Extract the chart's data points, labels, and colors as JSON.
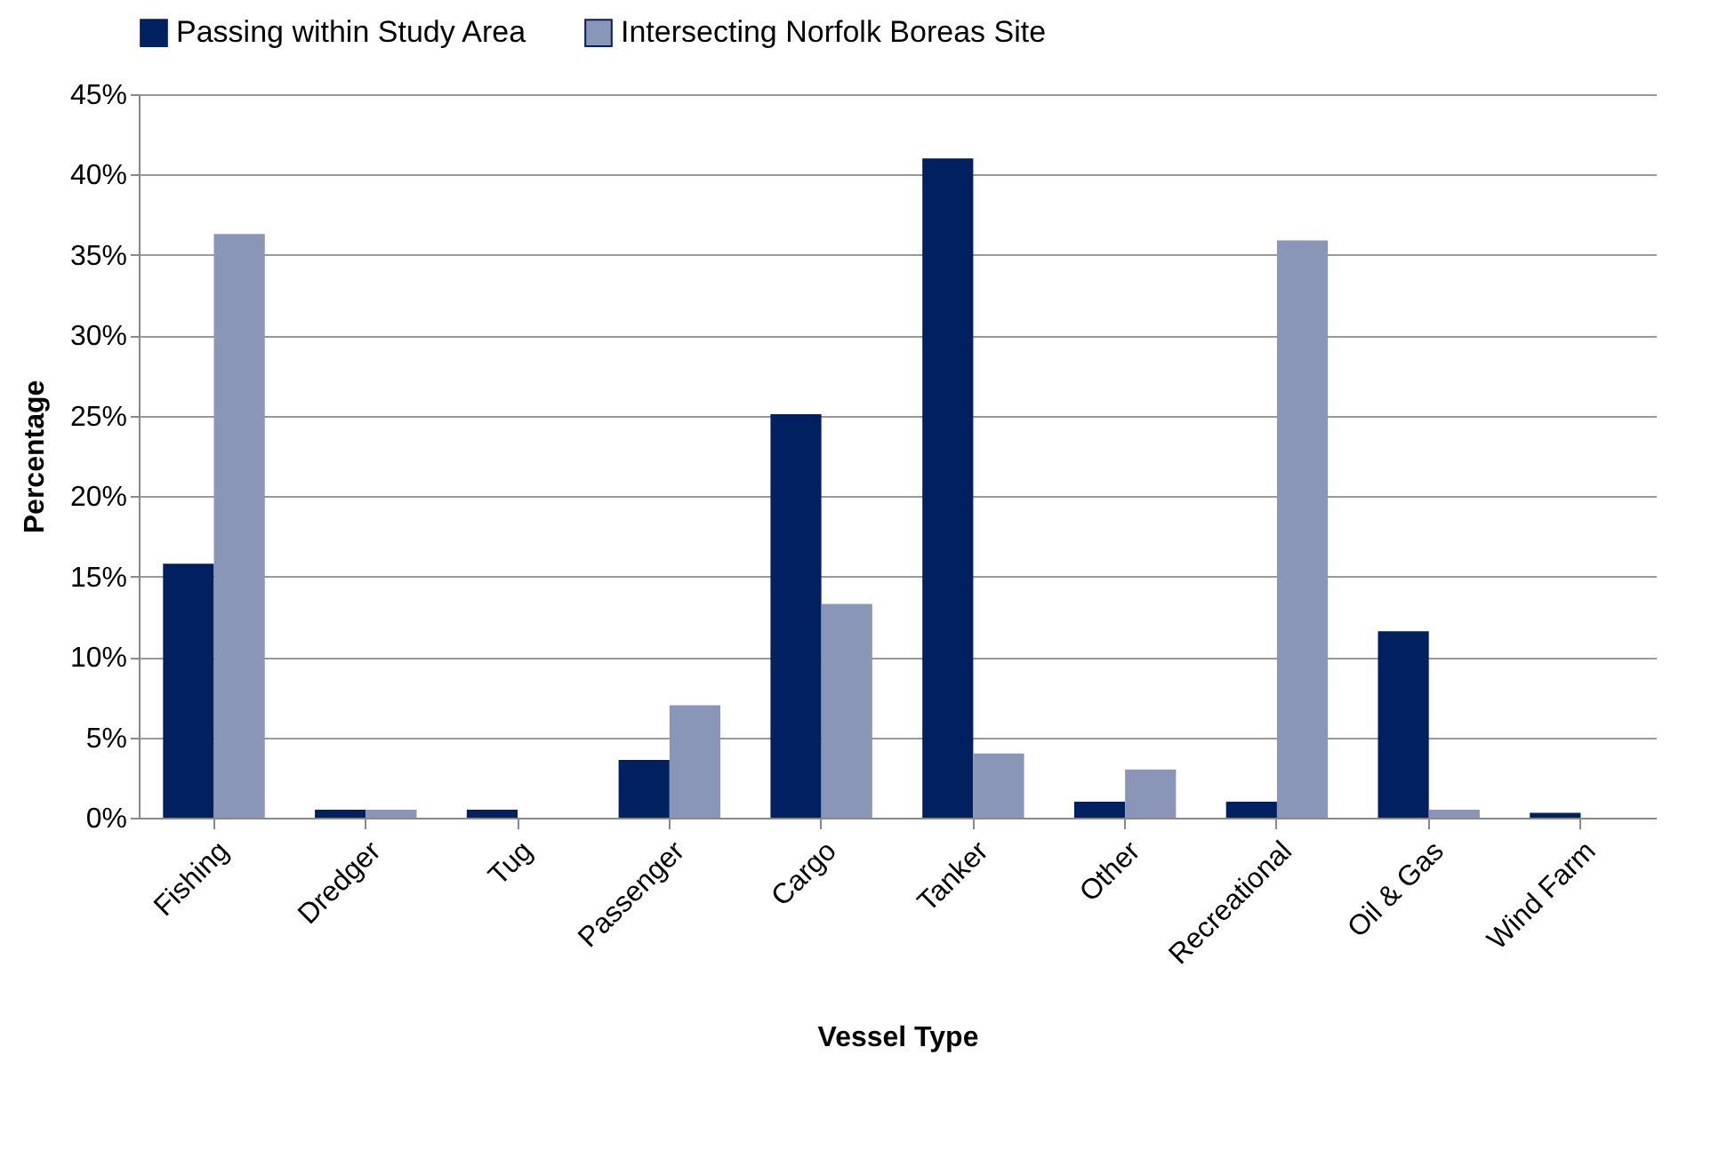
{
  "chart_data": {
    "type": "bar",
    "xlabel": "Vessel Type",
    "ylabel": "Percentage",
    "categories": [
      "Fishing",
      "Dredger",
      "Tug",
      "Passenger",
      "Cargo",
      "Tanker",
      "Other",
      "Recreational",
      "Oil & Gas",
      "Wind Farm"
    ],
    "series": [
      {
        "name": "Passing within Study Area",
        "color": "#002060",
        "values": [
          15.8,
          0.5,
          0.5,
          3.6,
          25.1,
          41.0,
          1.0,
          1.0,
          11.6,
          0.3
        ]
      },
      {
        "name": "Intersecting Norfolk Boreas Site",
        "color": "#8a96b8",
        "values": [
          36.3,
          0.5,
          0,
          7.0,
          13.3,
          4.0,
          3.0,
          35.9,
          0.5,
          0
        ]
      }
    ],
    "ylim": [
      0,
      45
    ],
    "yticks": [
      {
        "value": 0,
        "label": "0%"
      },
      {
        "value": 5,
        "label": "5%"
      },
      {
        "value": 10,
        "label": "10%"
      },
      {
        "value": 15,
        "label": "15%"
      },
      {
        "value": 20,
        "label": "20%"
      },
      {
        "value": 25,
        "label": "25%"
      },
      {
        "value": 30,
        "label": "30%"
      },
      {
        "value": 35,
        "label": "35%"
      },
      {
        "value": 40,
        "label": "40%"
      },
      {
        "value": 45,
        "label": "45%"
      }
    ],
    "grid": "y",
    "legend": "top"
  }
}
